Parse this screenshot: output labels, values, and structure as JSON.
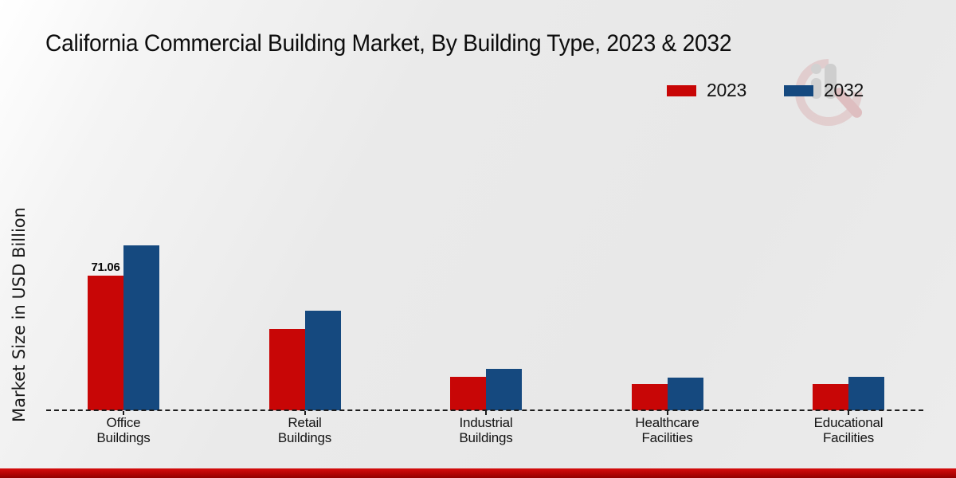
{
  "chart_data": {
    "type": "bar",
    "title": "California Commercial Building Market, By Building Type, 2023 & 2032",
    "xlabel": "",
    "ylabel": "Market Size in USD Billion",
    "categories": [
      "Office Buildings",
      "Retail Buildings",
      "Industrial Buildings",
      "Healthcare Facilities",
      "Educational Facilities"
    ],
    "series": [
      {
        "name": "2023",
        "color": "#c80606",
        "values": [
          71.06,
          42.9,
          17.7,
          13.9,
          13.9
        ]
      },
      {
        "name": "2032",
        "color": "#15497f",
        "values": [
          87.0,
          52.6,
          21.9,
          17.2,
          17.7
        ]
      }
    ],
    "data_labels": [
      {
        "series_index": 0,
        "category_index": 0,
        "text": "71.06"
      }
    ],
    "ylim": [
      0,
      95
    ],
    "grid": false,
    "legend_position": "top-right",
    "baseline_style": "dashed"
  },
  "decor": {
    "bottom_strip_color": "#b30505",
    "watermark": "magnifier-bar-chart-logo"
  }
}
